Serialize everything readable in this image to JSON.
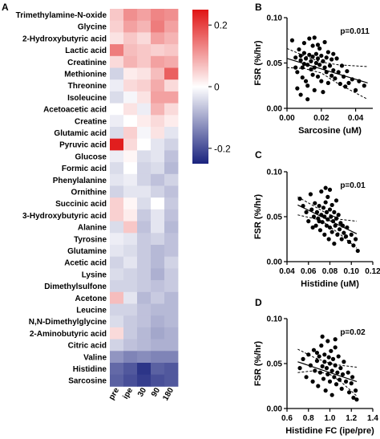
{
  "panels": {
    "A": "A",
    "B": "B",
    "C": "C",
    "D": "D"
  },
  "chart_data": [
    {
      "type": "heatmap",
      "panel": "A",
      "rows": [
        "Trimethylamine-N-oxide",
        "Glycine",
        "2-Hydroxybutyric acid",
        "Lactic acid",
        "Creatinine",
        "Methionine",
        "Threonine",
        "Isoleucine",
        "Acetoacetic acid",
        "Creatine",
        "Glutamic acid",
        "Pyruvic acid",
        "Glucose",
        "Formic acid",
        "Phenylalanine",
        "Ornithine",
        "Succinic acid",
        "3-Hydroxybutyric acid",
        "Alanine",
        "Tyrosine",
        "Glutamine",
        "Acetic acid",
        "Lysine",
        "Dimethylsulfone",
        "Acetone",
        "Leucine",
        "N,N-Dimethylglycine",
        "2-Aminobutyric acid",
        "Citric acid",
        "Valine",
        "Histidine",
        "Sarcosine"
      ],
      "columns": [
        "pre",
        "ipe",
        "30",
        "90",
        "180"
      ],
      "values": [
        [
          0.06,
          0.12,
          0.1,
          0.13,
          0.12
        ],
        [
          0.05,
          0.1,
          0.08,
          0.14,
          0.1
        ],
        [
          0.03,
          0.06,
          0.04,
          0.1,
          0.08
        ],
        [
          0.14,
          0.07,
          0.06,
          0.05,
          0.06
        ],
        [
          0.04,
          0.08,
          0.06,
          0.1,
          0.09
        ],
        [
          -0.05,
          0.02,
          0.03,
          0.07,
          0.17
        ],
        [
          -0.02,
          0.04,
          0.05,
          0.09,
          0.04
        ],
        [
          -0.04,
          -0.01,
          0.03,
          0.1,
          0.1
        ],
        [
          0.0,
          0.03,
          -0.02,
          0.08,
          0.04
        ],
        [
          -0.02,
          0.0,
          0.02,
          0.04,
          0.02
        ],
        [
          -0.04,
          0.05,
          -0.01,
          0.03,
          -0.03
        ],
        [
          0.24,
          0.04,
          0.0,
          -0.03,
          -0.05
        ],
        [
          -0.02,
          0.01,
          -0.04,
          -0.03,
          -0.07
        ],
        [
          -0.04,
          0.0,
          -0.05,
          -0.04,
          -0.08
        ],
        [
          -0.03,
          -0.02,
          -0.05,
          -0.07,
          -0.05
        ],
        [
          -0.05,
          -0.03,
          -0.03,
          -0.05,
          -0.07
        ],
        [
          0.05,
          0.01,
          -0.04,
          0.0,
          -0.06
        ],
        [
          0.05,
          0.02,
          -0.06,
          -0.03,
          -0.07
        ],
        [
          -0.04,
          0.06,
          -0.07,
          -0.03,
          -0.08
        ],
        [
          -0.02,
          -0.03,
          -0.06,
          -0.05,
          -0.07
        ],
        [
          -0.03,
          -0.04,
          -0.06,
          -0.08,
          -0.07
        ],
        [
          -0.05,
          -0.03,
          -0.06,
          -0.08,
          -0.05
        ],
        [
          -0.04,
          -0.05,
          -0.06,
          -0.09,
          -0.06
        ],
        [
          -0.05,
          -0.05,
          -0.06,
          -0.07,
          -0.06
        ],
        [
          0.07,
          -0.03,
          -0.08,
          -0.06,
          -0.08
        ],
        [
          -0.05,
          -0.05,
          -0.07,
          -0.08,
          -0.08
        ],
        [
          -0.04,
          -0.06,
          -0.07,
          -0.09,
          -0.08
        ],
        [
          0.04,
          -0.06,
          -0.08,
          -0.1,
          -0.09
        ],
        [
          -0.05,
          -0.07,
          -0.08,
          -0.09,
          -0.09
        ],
        [
          -0.12,
          -0.14,
          -0.13,
          -0.14,
          -0.14
        ],
        [
          -0.17,
          -0.19,
          -0.23,
          -0.18,
          -0.19
        ],
        [
          -0.18,
          -0.2,
          -0.22,
          -0.2,
          -0.19
        ]
      ],
      "colorbar": {
        "range": [
          -0.25,
          0.25
        ],
        "ticks": [
          0.2,
          0,
          -0.2
        ],
        "tick_labels": [
          "0.2",
          "0",
          "-0.2"
        ],
        "low_color": "#1a237e",
        "mid_color": "#ffffff",
        "high_color": "#e01515"
      }
    },
    {
      "type": "scatter",
      "panel": "B",
      "xlabel": "Sarcosine (uM)",
      "ylabel": "FSR (%/hr)",
      "xlim": [
        0,
        0.05
      ],
      "ylim": [
        0,
        0.1
      ],
      "xticks": [
        0,
        0.02,
        0.04
      ],
      "xtick_labels": [
        "0.00",
        "0.02",
        "0.04"
      ],
      "yticks": [
        0,
        0.05,
        0.1
      ],
      "ytick_labels": [
        "0.00",
        "0.05",
        "0.10"
      ],
      "annotation": "p=0.011",
      "fit": {
        "x": [
          0,
          0.047
        ],
        "y": [
          0.055,
          0.028
        ]
      },
      "ci_upper": [
        [
          0,
          0.066
        ],
        [
          0.01,
          0.058
        ],
        [
          0.02,
          0.051
        ],
        [
          0.03,
          0.048
        ],
        [
          0.047,
          0.046
        ]
      ],
      "ci_lower": [
        [
          0,
          0.045
        ],
        [
          0.01,
          0.044
        ],
        [
          0.02,
          0.039
        ],
        [
          0.03,
          0.027
        ],
        [
          0.047,
          0.01
        ]
      ],
      "points": [
        [
          0.003,
          0.075
        ],
        [
          0.005,
          0.056
        ],
        [
          0.005,
          0.045
        ],
        [
          0.006,
          0.04
        ],
        [
          0.007,
          0.065
        ],
        [
          0.008,
          0.058
        ],
        [
          0.008,
          0.053
        ],
        [
          0.009,
          0.034
        ],
        [
          0.009,
          0.045
        ],
        [
          0.01,
          0.072
        ],
        [
          0.01,
          0.061
        ],
        [
          0.01,
          0.049
        ],
        [
          0.011,
          0.03
        ],
        [
          0.011,
          0.055
        ],
        [
          0.012,
          0.048
        ],
        [
          0.012,
          0.01
        ],
        [
          0.013,
          0.077
        ],
        [
          0.013,
          0.059
        ],
        [
          0.014,
          0.043
        ],
        [
          0.014,
          0.052
        ],
        [
          0.015,
          0.069
        ],
        [
          0.015,
          0.037
        ],
        [
          0.015,
          0.057
        ],
        [
          0.016,
          0.078
        ],
        [
          0.016,
          0.02
        ],
        [
          0.016,
          0.045
        ],
        [
          0.017,
          0.06
        ],
        [
          0.017,
          0.05
        ],
        [
          0.018,
          0.035
        ],
        [
          0.018,
          0.055
        ],
        [
          0.018,
          0.07
        ],
        [
          0.019,
          0.048
        ],
        [
          0.019,
          0.066
        ],
        [
          0.02,
          0.03
        ],
        [
          0.02,
          0.058
        ],
        [
          0.021,
          0.052
        ],
        [
          0.021,
          0.018
        ],
        [
          0.022,
          0.045
        ],
        [
          0.022,
          0.073
        ],
        [
          0.023,
          0.04
        ],
        [
          0.023,
          0.056
        ],
        [
          0.024,
          0.062
        ],
        [
          0.024,
          0.028
        ],
        [
          0.025,
          0.047
        ],
        [
          0.026,
          0.054
        ],
        [
          0.026,
          0.036
        ],
        [
          0.027,
          0.06
        ],
        [
          0.027,
          0.042
        ],
        [
          0.028,
          0.033
        ],
        [
          0.029,
          0.055
        ],
        [
          0.03,
          0.04
        ],
        [
          0.031,
          0.027
        ],
        [
          0.032,
          0.047
        ],
        [
          0.033,
          0.035
        ],
        [
          0.034,
          0.024
        ],
        [
          0.035,
          0.041
        ],
        [
          0.036,
          0.028
        ],
        [
          0.038,
          0.032
        ],
        [
          0.04,
          0.02
        ],
        [
          0.042,
          0.03
        ],
        [
          0.045,
          0.025
        ],
        [
          0.012,
          0.025
        ],
        [
          0.008,
          0.015
        ],
        [
          0.006,
          0.022
        ]
      ]
    },
    {
      "type": "scatter",
      "panel": "C",
      "xlabel": "Histidine (uM)",
      "ylabel": "FSR (%/hr)",
      "xlim": [
        0.04,
        0.12
      ],
      "ylim": [
        0,
        0.1
      ],
      "xticks": [
        0.04,
        0.06,
        0.08,
        0.1,
        0.12
      ],
      "xtick_labels": [
        "0.04",
        "0.06",
        "0.08",
        "0.10",
        "0.12"
      ],
      "yticks": [
        0,
        0.05,
        0.1
      ],
      "ytick_labels": [
        "0.00",
        "0.05",
        "0.10"
      ],
      "annotation": "p=0.01",
      "fit": {
        "x": [
          0.05,
          0.105
        ],
        "y": [
          0.063,
          0.031
        ]
      },
      "ci_upper": [
        [
          0.05,
          0.072
        ],
        [
          0.065,
          0.062
        ],
        [
          0.075,
          0.055
        ],
        [
          0.09,
          0.047
        ],
        [
          0.105,
          0.045
        ]
      ],
      "ci_lower": [
        [
          0.05,
          0.052
        ],
        [
          0.065,
          0.048
        ],
        [
          0.075,
          0.043
        ],
        [
          0.09,
          0.03
        ],
        [
          0.105,
          0.015
        ]
      ],
      "points": [
        [
          0.052,
          0.07
        ],
        [
          0.055,
          0.062
        ],
        [
          0.058,
          0.055
        ],
        [
          0.06,
          0.045
        ],
        [
          0.062,
          0.075
        ],
        [
          0.063,
          0.058
        ],
        [
          0.065,
          0.05
        ],
        [
          0.066,
          0.065
        ],
        [
          0.067,
          0.04
        ],
        [
          0.068,
          0.055
        ],
        [
          0.069,
          0.048
        ],
        [
          0.07,
          0.062
        ],
        [
          0.071,
          0.035
        ],
        [
          0.072,
          0.078
        ],
        [
          0.072,
          0.052
        ],
        [
          0.073,
          0.044
        ],
        [
          0.074,
          0.06
        ],
        [
          0.075,
          0.03
        ],
        [
          0.075,
          0.05
        ],
        [
          0.076,
          0.066
        ],
        [
          0.077,
          0.04
        ],
        [
          0.077,
          0.055
        ],
        [
          0.078,
          0.072
        ],
        [
          0.078,
          0.047
        ],
        [
          0.079,
          0.025
        ],
        [
          0.08,
          0.058
        ],
        [
          0.08,
          0.038
        ],
        [
          0.081,
          0.05
        ],
        [
          0.082,
          0.063
        ],
        [
          0.082,
          0.033
        ],
        [
          0.083,
          0.045
        ],
        [
          0.084,
          0.055
        ],
        [
          0.084,
          0.02
        ],
        [
          0.085,
          0.04
        ],
        [
          0.086,
          0.048
        ],
        [
          0.087,
          0.03
        ],
        [
          0.088,
          0.052
        ],
        [
          0.089,
          0.036
        ],
        [
          0.09,
          0.043
        ],
        [
          0.091,
          0.025
        ],
        [
          0.092,
          0.04
        ],
        [
          0.093,
          0.032
        ],
        [
          0.095,
          0.028
        ],
        [
          0.096,
          0.038
        ],
        [
          0.098,
          0.022
        ],
        [
          0.1,
          0.03
        ],
        [
          0.102,
          0.018
        ],
        [
          0.104,
          0.025
        ],
        [
          0.106,
          0.012
        ],
        [
          0.076,
          0.082
        ],
        [
          0.08,
          0.08
        ],
        [
          0.086,
          0.068
        ],
        [
          0.07,
          0.045
        ],
        [
          0.064,
          0.038
        ]
      ]
    },
    {
      "type": "scatter",
      "panel": "D",
      "xlabel": "Histidine FC (ipe/pre)",
      "ylabel": "FSR (%/hr)",
      "xlim": [
        0.6,
        1.4
      ],
      "ylim": [
        0,
        0.1
      ],
      "xticks": [
        0.6,
        0.8,
        1.0,
        1.2,
        1.4
      ],
      "xtick_labels": [
        "0.6",
        "0.8",
        "1.0",
        "1.2",
        "1.4"
      ],
      "yticks": [
        0,
        0.05,
        0.1
      ],
      "ytick_labels": [
        "0.00",
        "0.05",
        "0.10"
      ],
      "annotation": "p=0.02",
      "fit": {
        "x": [
          0.7,
          1.25
        ],
        "y": [
          0.052,
          0.03
        ]
      },
      "ci_upper": [
        [
          0.7,
          0.066
        ],
        [
          0.85,
          0.057
        ],
        [
          1.0,
          0.05
        ],
        [
          1.1,
          0.048
        ],
        [
          1.25,
          0.046
        ]
      ],
      "ci_lower": [
        [
          0.7,
          0.04
        ],
        [
          0.85,
          0.042
        ],
        [
          1.0,
          0.038
        ],
        [
          1.1,
          0.03
        ],
        [
          1.25,
          0.014
        ]
      ],
      "points": [
        [
          0.72,
          0.045
        ],
        [
          0.75,
          0.055
        ],
        [
          0.78,
          0.035
        ],
        [
          0.8,
          0.06
        ],
        [
          0.82,
          0.048
        ],
        [
          0.84,
          0.03
        ],
        [
          0.85,
          0.065
        ],
        [
          0.86,
          0.042
        ],
        [
          0.88,
          0.053
        ],
        [
          0.89,
          0.025
        ],
        [
          0.9,
          0.058
        ],
        [
          0.91,
          0.04
        ],
        [
          0.92,
          0.07
        ],
        [
          0.93,
          0.047
        ],
        [
          0.94,
          0.033
        ],
        [
          0.95,
          0.06
        ],
        [
          0.95,
          0.052
        ],
        [
          0.96,
          0.02
        ],
        [
          0.97,
          0.045
        ],
        [
          0.98,
          0.075
        ],
        [
          0.98,
          0.038
        ],
        [
          0.99,
          0.057
        ],
        [
          1.0,
          0.03
        ],
        [
          1.0,
          0.05
        ],
        [
          1.01,
          0.064
        ],
        [
          1.02,
          0.042
        ],
        [
          1.02,
          0.015
        ],
        [
          1.03,
          0.055
        ],
        [
          1.04,
          0.035
        ],
        [
          1.05,
          0.048
        ],
        [
          1.05,
          0.068
        ],
        [
          1.06,
          0.027
        ],
        [
          1.07,
          0.04
        ],
        [
          1.08,
          0.058
        ],
        [
          1.09,
          0.032
        ],
        [
          1.1,
          0.045
        ],
        [
          1.11,
          0.022
        ],
        [
          1.12,
          0.038
        ],
        [
          1.13,
          0.052
        ],
        [
          1.15,
          0.03
        ],
        [
          1.17,
          0.04
        ],
        [
          1.18,
          0.018
        ],
        [
          1.2,
          0.028
        ],
        [
          1.21,
          0.035
        ],
        [
          1.22,
          0.012
        ],
        [
          1.24,
          0.02
        ],
        [
          1.25,
          0.01
        ],
        [
          0.93,
          0.08
        ],
        [
          1.05,
          0.077
        ],
        [
          0.88,
          0.062
        ]
      ]
    }
  ]
}
